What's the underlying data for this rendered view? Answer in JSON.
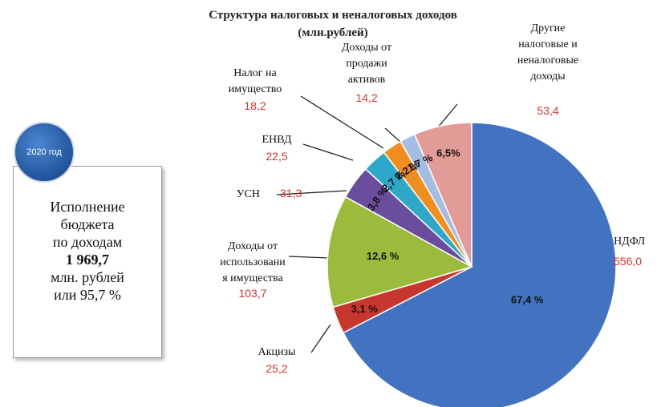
{
  "chart_data": {
    "type": "pie",
    "title": "Структура налоговых и неналоговых доходов\n(млн.рублей)",
    "categories": [
      "НДФЛ",
      "Акцизы",
      "Доходы от\nиспользовани\nя имущества",
      "УСН",
      "ЕНВД",
      "Налог на\nимущество",
      "Доходы от\nпродажи\nактивов",
      "Другие\nналоговые и\nненалоговые\nдоходы"
    ],
    "values": [
      556.0,
      25.2,
      103.7,
      31.3,
      22.5,
      18.2,
      14.2,
      53.4
    ],
    "value_labels": [
      "556,0",
      "25,2",
      "103,7",
      "31,3",
      "22,5",
      "18,2",
      "14,2",
      "53,4"
    ],
    "percent_labels": [
      "67,4 %",
      "3,1 %",
      "12,6 %",
      "3,8 %",
      "2,7 %",
      "2,2 %",
      "1,7 %",
      "6,5%"
    ],
    "colors": [
      "#4273c0",
      "#c8372d",
      "#9cbb3c",
      "#6b4d9e",
      "#2ea8c9",
      "#f08f1f",
      "#a3bde3",
      "#e29b96"
    ]
  },
  "info": {
    "badge": "2020 год",
    "lines": [
      "Исполнение",
      "бюджета",
      "по доходам"
    ],
    "amount": "1 969,7",
    "tail": [
      "млн. рублей",
      "или 95,7 %"
    ]
  }
}
